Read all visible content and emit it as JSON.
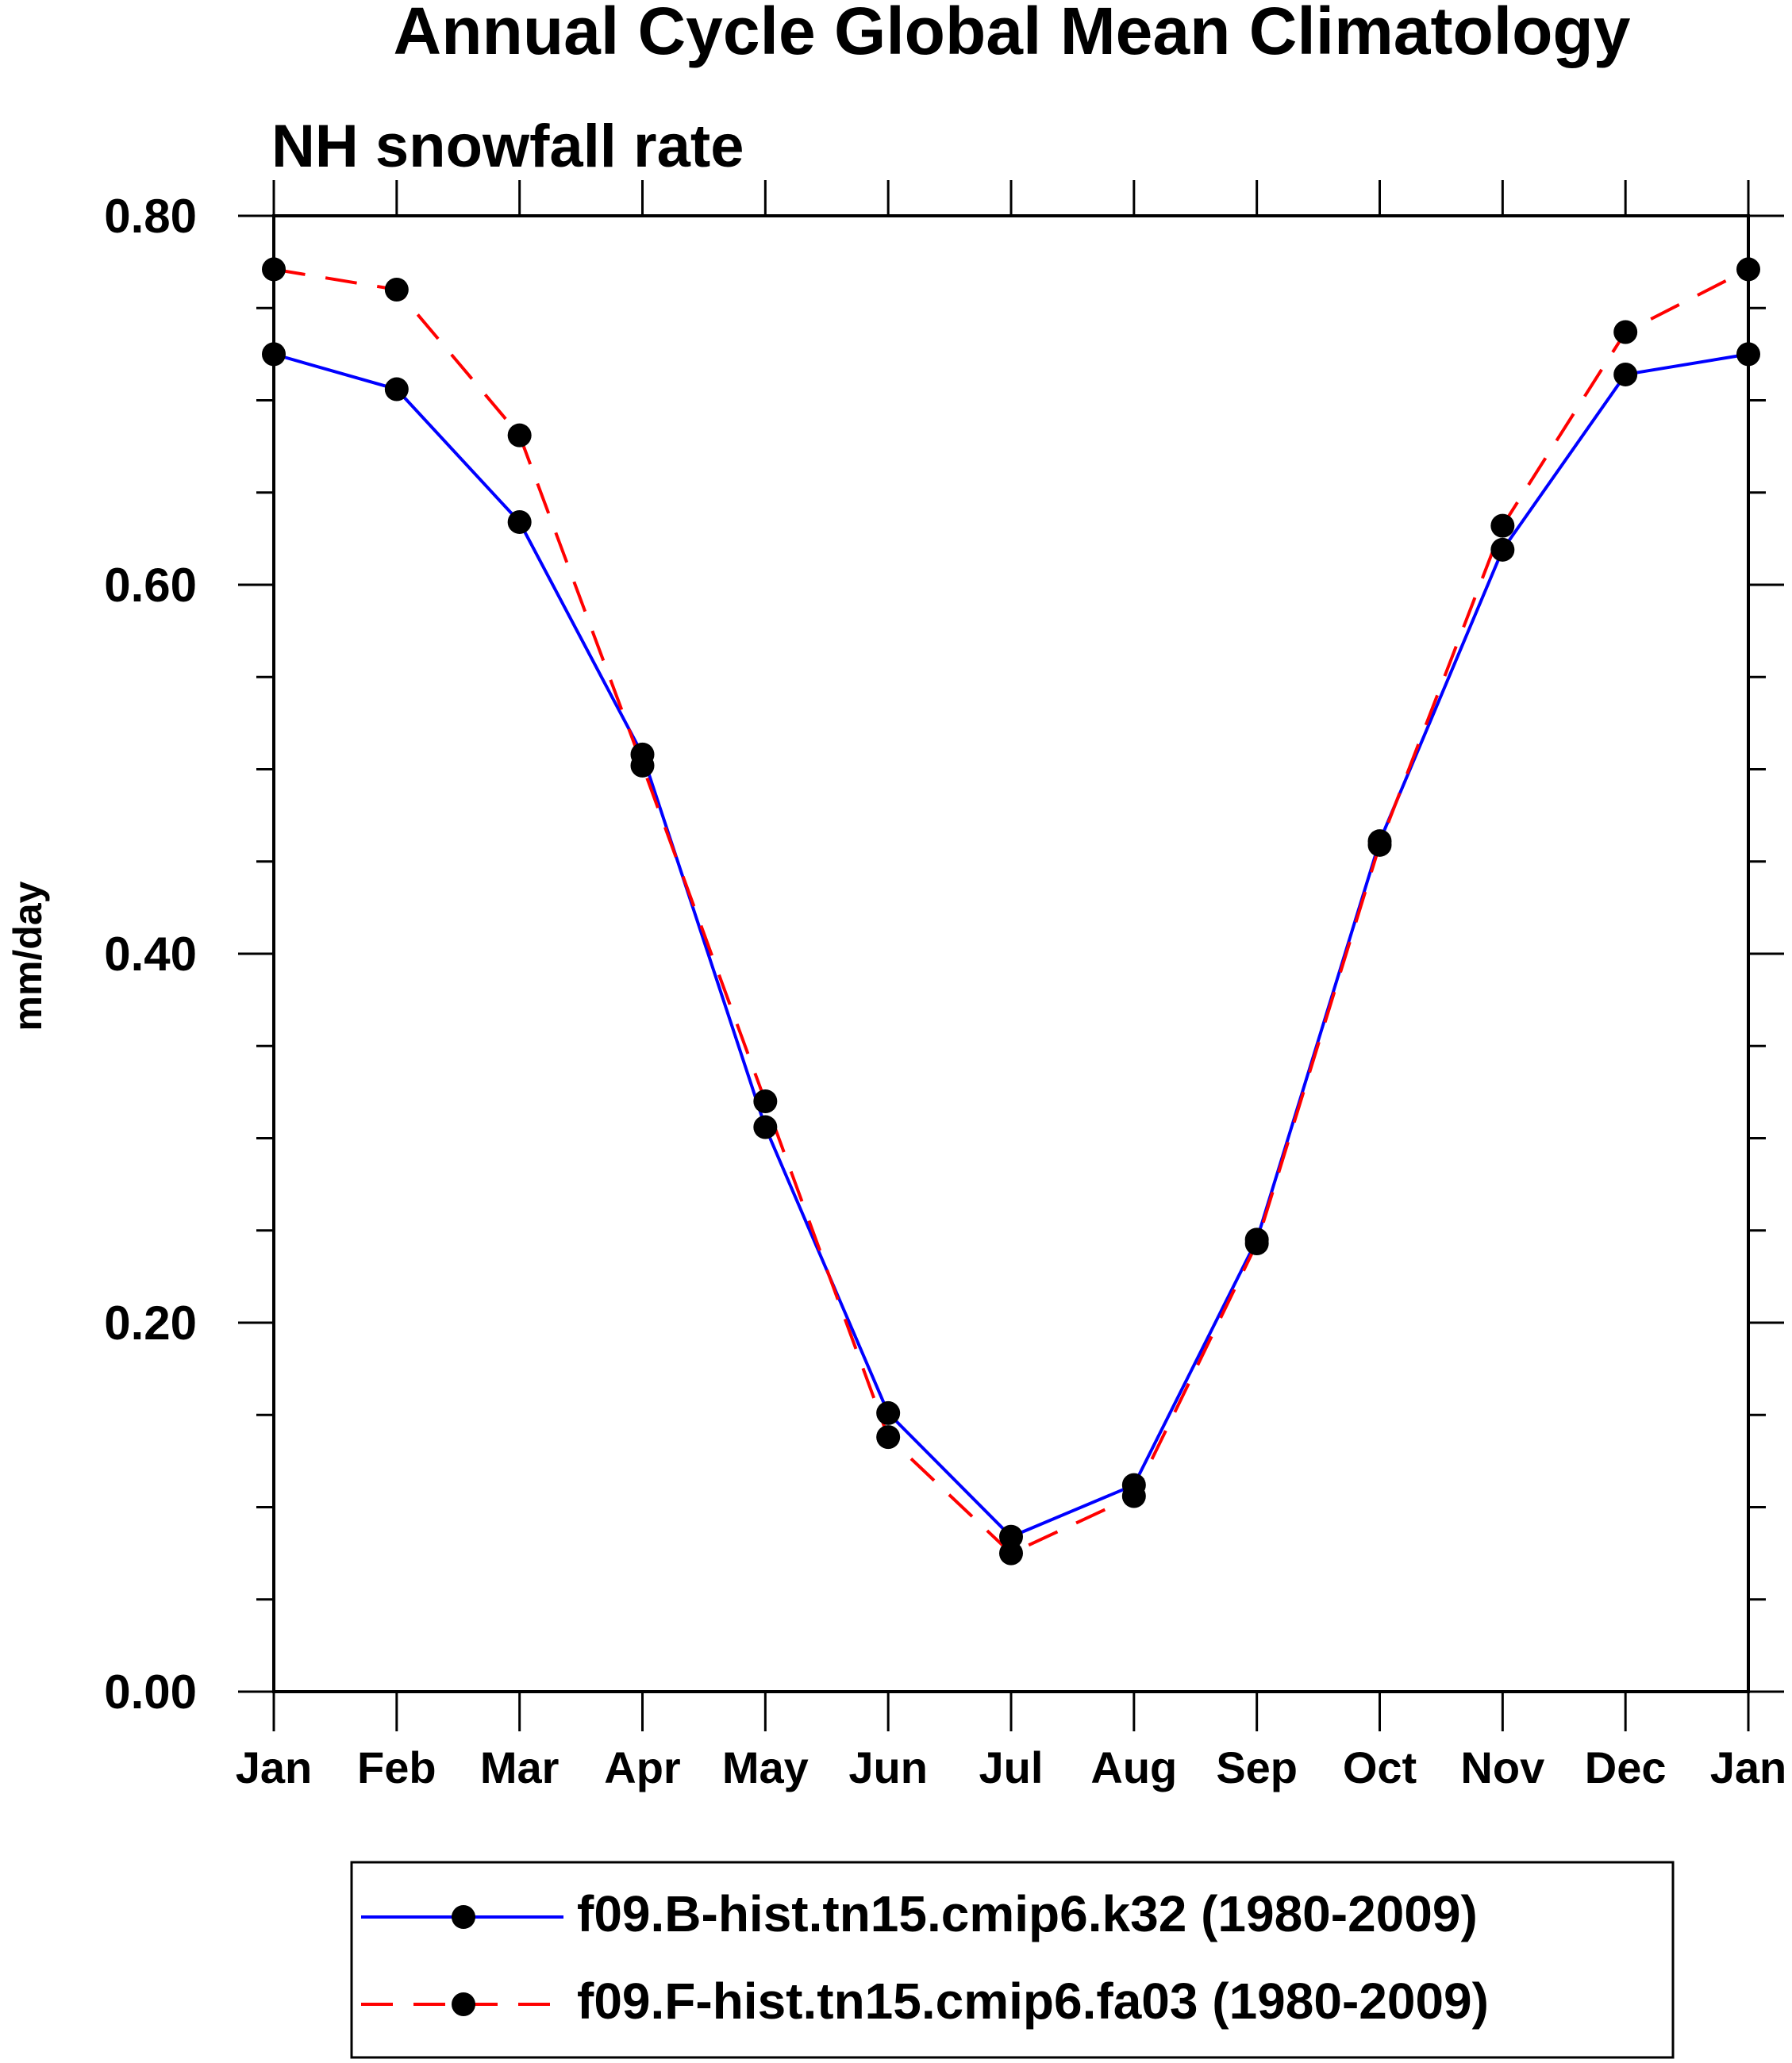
{
  "chart_data": {
    "type": "line",
    "title": "Annual Cycle Global Mean Climatology",
    "subtitle": "NH snowfall rate",
    "xlabel": "",
    "ylabel": "mm/day",
    "categories": [
      "Jan",
      "Feb",
      "Mar",
      "Apr",
      "May",
      "Jun",
      "Jul",
      "Aug",
      "Sep",
      "Oct",
      "Nov",
      "Dec",
      "Jan"
    ],
    "ylim": [
      0.0,
      0.8
    ],
    "yticks": [
      "0.00",
      "0.20",
      "0.40",
      "0.60",
      "0.80"
    ],
    "grid": false,
    "legend_position": "bottom",
    "series": [
      {
        "name": "f09.B-hist.tn15.cmip6.k32 (1980-2009)",
        "color": "#0000ff",
        "dash": "solid",
        "values": [
          0.725,
          0.706,
          0.634,
          0.508,
          0.306,
          0.151,
          0.084,
          0.112,
          0.245,
          0.461,
          0.619,
          0.714,
          0.725
        ]
      },
      {
        "name": "f09.F-hist.tn15.cmip6.fa03 (1980-2009)",
        "color": "#ff0000",
        "dash": "dashed",
        "values": [
          0.771,
          0.76,
          0.681,
          0.502,
          0.32,
          0.138,
          0.075,
          0.106,
          0.243,
          0.459,
          0.632,
          0.737,
          0.771
        ]
      }
    ]
  }
}
